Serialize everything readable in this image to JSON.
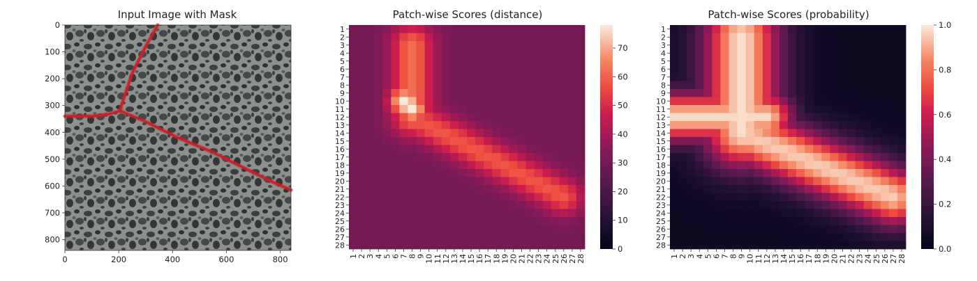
{
  "chart_data": [
    {
      "type": "image",
      "title": "Input Image with Mask",
      "x_ticks": [
        "0",
        "200",
        "400",
        "600",
        "800"
      ],
      "x_tick_values": [
        0,
        200,
        400,
        600,
        800
      ],
      "y_ticks": [
        "0",
        "100",
        "200",
        "300",
        "400",
        "500",
        "600",
        "700",
        "800"
      ],
      "y_tick_values": [
        0,
        100,
        200,
        300,
        400,
        500,
        600,
        700,
        800
      ],
      "xlim": [
        0,
        840
      ],
      "ylim": [
        840,
        0
      ],
      "mask_color": "#cc1f25",
      "mask_paths": [
        [
          [
            345,
            0
          ],
          [
            300,
            80
          ],
          [
            250,
            180
          ],
          [
            210,
            300
          ],
          [
            205,
            320
          ]
        ],
        [
          [
            0,
            340
          ],
          [
            100,
            340
          ],
          [
            160,
            333
          ],
          [
            205,
            320
          ]
        ],
        [
          [
            205,
            320
          ],
          [
            300,
            360
          ],
          [
            420,
            420
          ],
          [
            540,
            470
          ],
          [
            660,
            530
          ],
          [
            760,
            580
          ],
          [
            840,
            615
          ]
        ]
      ]
    },
    {
      "type": "heatmap",
      "title": "Patch-wise Scores (distance)",
      "x_categories": [
        "1",
        "2",
        "3",
        "4",
        "5",
        "6",
        "7",
        "8",
        "9",
        "10",
        "11",
        "12",
        "13",
        "14",
        "15",
        "16",
        "17",
        "18",
        "19",
        "20",
        "21",
        "22",
        "23",
        "24",
        "25",
        "26",
        "27",
        "28"
      ],
      "y_categories": [
        "1",
        "2",
        "3",
        "4",
        "5",
        "6",
        "7",
        "8",
        "9",
        "10",
        "11",
        "12",
        "13",
        "14",
        "15",
        "16",
        "17",
        "18",
        "19",
        "20",
        "21",
        "22",
        "23",
        "24",
        "25",
        "26",
        "27",
        "28"
      ],
      "colorbar_range": [
        0,
        78
      ],
      "colorbar_ticks": [
        "0",
        "10",
        "20",
        "30",
        "40",
        "50",
        "60",
        "70"
      ],
      "colorbar_tick_values": [
        0,
        10,
        20,
        30,
        40,
        50,
        60,
        70
      ],
      "colormap": "rocket",
      "structure": {
        "base": 30,
        "bands": [
          {
            "from": [
              8,
              3
            ],
            "to": [
              8,
              12
            ],
            "peak": 62,
            "width": 1.8
          },
          {
            "from": [
              8,
              12
            ],
            "to": [
              26,
              22
            ],
            "peak": 58,
            "width": 1.6
          },
          {
            "from": [
              7,
              10
            ],
            "to": [
              8,
              11
            ],
            "peak": 78,
            "width": 1.3
          }
        ]
      }
    },
    {
      "type": "heatmap",
      "title": "Patch-wise Scores (probability)",
      "x_categories": [
        "1",
        "2",
        "3",
        "4",
        "5",
        "6",
        "7",
        "8",
        "9",
        "10",
        "11",
        "12",
        "13",
        "14",
        "15",
        "16",
        "17",
        "18",
        "19",
        "20",
        "21",
        "22",
        "23",
        "24",
        "25",
        "26",
        "27",
        "28"
      ],
      "y_categories": [
        "1",
        "2",
        "3",
        "4",
        "5",
        "6",
        "7",
        "8",
        "9",
        "10",
        "11",
        "12",
        "13",
        "14",
        "15",
        "16",
        "17",
        "18",
        "19",
        "20",
        "21",
        "22",
        "23",
        "24",
        "25",
        "26",
        "27",
        "28"
      ],
      "colorbar_range": [
        0.0,
        1.0
      ],
      "colorbar_ticks": [
        "0.0",
        "0.2",
        "0.4",
        "0.6",
        "0.8",
        "1.0"
      ],
      "colorbar_tick_values": [
        0.0,
        0.2,
        0.4,
        0.6,
        0.8,
        1.0
      ],
      "colormap": "rocket",
      "structure": {
        "base": 0.05,
        "bands": [
          {
            "from": [
              9,
              2
            ],
            "to": [
              9,
              14
            ],
            "peak": 0.98,
            "width": 3.2
          },
          {
            "from": [
              1,
              12
            ],
            "to": [
              12,
              12
            ],
            "peak": 0.97,
            "width": 2.2
          },
          {
            "from": [
              9,
              14
            ],
            "to": [
              27,
              22
            ],
            "peak": 0.95,
            "width": 2.6
          }
        ]
      }
    }
  ]
}
